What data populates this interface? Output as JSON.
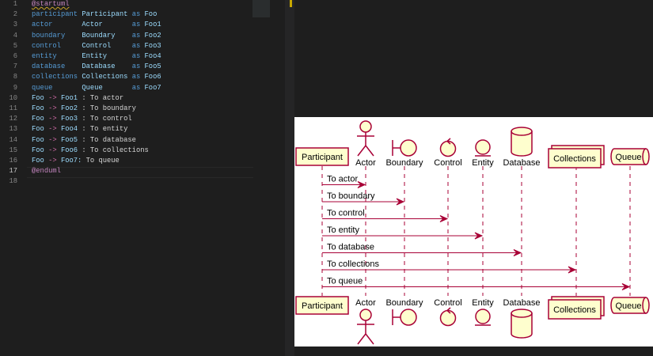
{
  "editor": {
    "line_numbers": [
      1,
      2,
      3,
      4,
      5,
      6,
      7,
      8,
      9,
      10,
      11,
      12,
      13,
      14,
      15,
      16,
      17,
      18
    ],
    "active_line": 17,
    "lines": [
      [
        {
          "text": "@startuml",
          "kind": "directive"
        }
      ],
      [
        {
          "text": "participant",
          "kind": "keyword"
        },
        {
          "text": "Participant",
          "kind": "name"
        },
        {
          "text": "as",
          "kind": "keyword"
        },
        {
          "text": "Foo",
          "kind": "name"
        }
      ],
      [
        {
          "text": "actor",
          "kind": "keyword"
        },
        {
          "text": "Actor",
          "kind": "name"
        },
        {
          "text": "as",
          "kind": "keyword"
        },
        {
          "text": "Foo1",
          "kind": "name"
        }
      ],
      [
        {
          "text": "boundary",
          "kind": "keyword"
        },
        {
          "text": "Boundary",
          "kind": "name"
        },
        {
          "text": "as",
          "kind": "keyword"
        },
        {
          "text": "Foo2",
          "kind": "name"
        }
      ],
      [
        {
          "text": "control",
          "kind": "keyword"
        },
        {
          "text": "Control",
          "kind": "name"
        },
        {
          "text": "as",
          "kind": "keyword"
        },
        {
          "text": "Foo3",
          "kind": "name"
        }
      ],
      [
        {
          "text": "entity",
          "kind": "keyword"
        },
        {
          "text": "Entity",
          "kind": "name"
        },
        {
          "text": "as",
          "kind": "keyword"
        },
        {
          "text": "Foo4",
          "kind": "name"
        }
      ],
      [
        {
          "text": "database",
          "kind": "keyword"
        },
        {
          "text": "Database",
          "kind": "name"
        },
        {
          "text": "as",
          "kind": "keyword"
        },
        {
          "text": "Foo5",
          "kind": "name"
        }
      ],
      [
        {
          "text": "collections",
          "kind": "keyword"
        },
        {
          "text": "Collections",
          "kind": "name"
        },
        {
          "text": "as",
          "kind": "keyword"
        },
        {
          "text": "Foo6",
          "kind": "name"
        }
      ],
      [
        {
          "text": "queue",
          "kind": "keyword"
        },
        {
          "text": "Queue",
          "kind": "name"
        },
        {
          "text": "as",
          "kind": "keyword"
        },
        {
          "text": "Foo7",
          "kind": "name"
        }
      ],
      [
        {
          "text": "Foo",
          "kind": "name"
        },
        {
          "text": "->",
          "kind": "op"
        },
        {
          "text": "Foo1",
          "kind": "name"
        },
        {
          "text": ": To actor",
          "kind": "text"
        }
      ],
      [
        {
          "text": "Foo",
          "kind": "name"
        },
        {
          "text": "->",
          "kind": "op"
        },
        {
          "text": "Foo2",
          "kind": "name"
        },
        {
          "text": ": To boundary",
          "kind": "text"
        }
      ],
      [
        {
          "text": "Foo",
          "kind": "name"
        },
        {
          "text": "->",
          "kind": "op"
        },
        {
          "text": "Foo3",
          "kind": "name"
        },
        {
          "text": ": To control",
          "kind": "text"
        }
      ],
      [
        {
          "text": "Foo",
          "kind": "name"
        },
        {
          "text": "->",
          "kind": "op"
        },
        {
          "text": "Foo4",
          "kind": "name"
        },
        {
          "text": ": To entity",
          "kind": "text"
        }
      ],
      [
        {
          "text": "Foo",
          "kind": "name"
        },
        {
          "text": "->",
          "kind": "op"
        },
        {
          "text": "Foo5",
          "kind": "name"
        },
        {
          "text": ": To database",
          "kind": "text"
        }
      ],
      [
        {
          "text": "Foo",
          "kind": "name"
        },
        {
          "text": "->",
          "kind": "op"
        },
        {
          "text": "Foo6",
          "kind": "name"
        },
        {
          "text": ": To collections",
          "kind": "text"
        }
      ],
      [
        {
          "text": "Foo",
          "kind": "name"
        },
        {
          "text": "->",
          "kind": "op"
        },
        {
          "text": "Foo7:",
          "kind": "name"
        },
        {
          "text": "To queue",
          "kind": "text"
        }
      ],
      [
        {
          "text": "@enduml",
          "kind": "directive"
        }
      ],
      []
    ]
  },
  "diagram": {
    "participants": [
      {
        "label": "Participant",
        "shape": "participant"
      },
      {
        "label": "Actor",
        "shape": "actor"
      },
      {
        "label": "Boundary",
        "shape": "boundary"
      },
      {
        "label": "Control",
        "shape": "control"
      },
      {
        "label": "Entity",
        "shape": "entity"
      },
      {
        "label": "Database",
        "shape": "database"
      },
      {
        "label": "Collections",
        "shape": "collections"
      },
      {
        "label": "Queue",
        "shape": "queue"
      }
    ],
    "messages": [
      "To actor",
      "To boundary",
      "To control",
      "To entity",
      "To database",
      "To collections",
      "To queue"
    ]
  }
}
